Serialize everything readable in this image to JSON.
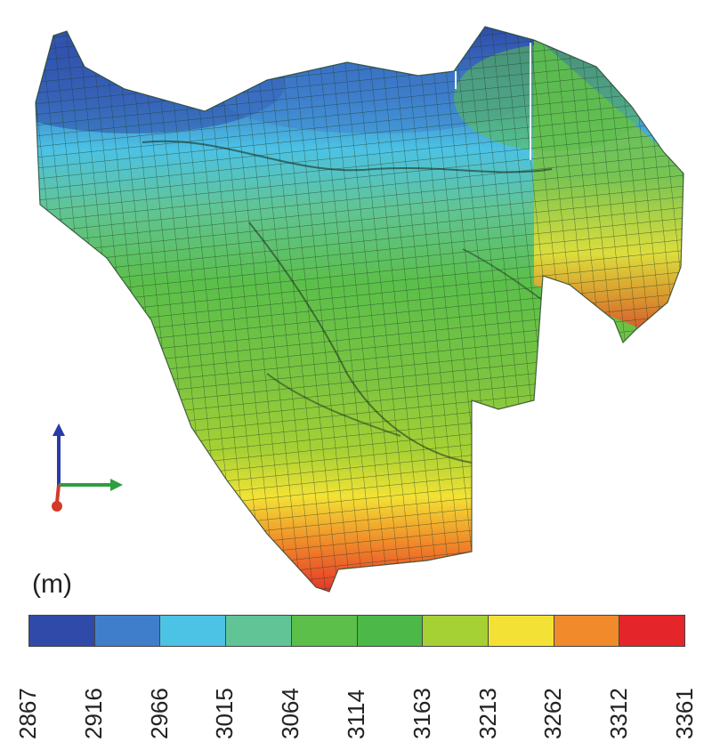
{
  "figure": {
    "unit_label": "(m)",
    "legend_colors": [
      "#2f4aa8",
      "#3f7ecb",
      "#4cc2e4",
      "#61c496",
      "#5bbf4a",
      "#4cb848",
      "#a6d134",
      "#f3e235",
      "#f08a2a",
      "#e4262b"
    ],
    "legend_ticks": [
      "2867",
      "2916",
      "2966",
      "3015",
      "3064",
      "3114",
      "3163",
      "3213",
      "3262",
      "3312",
      "3361"
    ],
    "axes_icon": {
      "up_color": "#2a3aa8",
      "right_color": "#2e9e3e",
      "origin_color": "#d23a2a"
    }
  }
}
